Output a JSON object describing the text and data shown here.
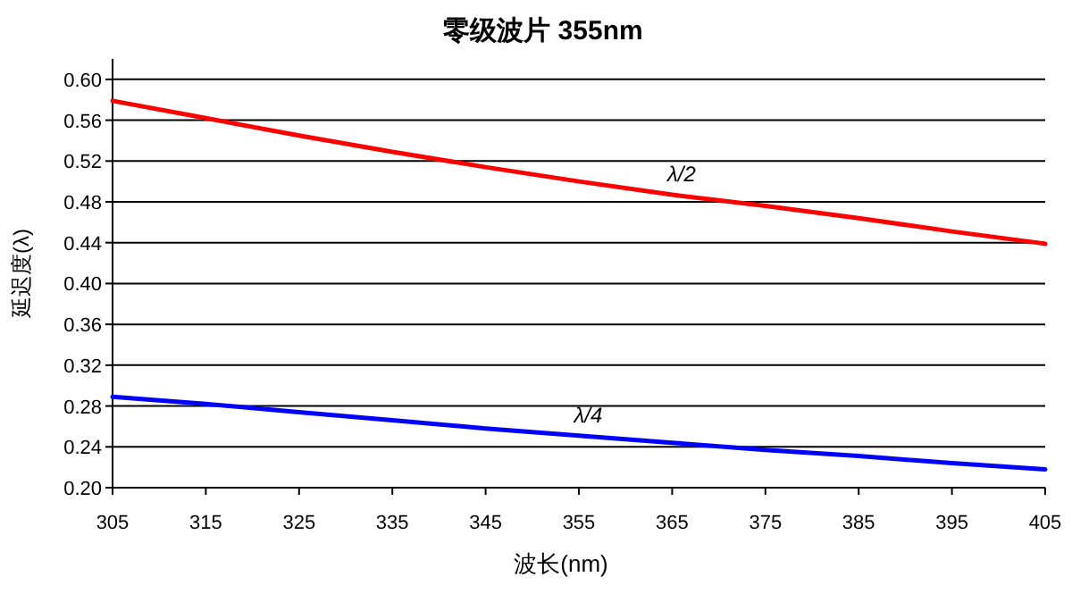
{
  "chart_data": {
    "type": "line",
    "title": "零级波片 355nm",
    "xlabel": "波长(nm)",
    "ylabel": "延迟度(λ)",
    "x": [
      305,
      315,
      325,
      335,
      345,
      355,
      365,
      375,
      385,
      395,
      405
    ],
    "series": [
      {
        "name": "λ/2",
        "color": "#ff0000",
        "values": [
          0.579,
          0.562,
          0.545,
          0.529,
          0.514,
          0.5,
          0.487,
          0.476,
          0.464,
          0.451,
          0.439
        ]
      },
      {
        "name": "λ/4",
        "color": "#0000ff",
        "values": [
          0.289,
          0.282,
          0.274,
          0.266,
          0.258,
          0.251,
          0.244,
          0.237,
          0.231,
          0.224,
          0.218
        ]
      }
    ],
    "xlim": [
      305,
      405
    ],
    "xticks": [
      305,
      315,
      325,
      335,
      345,
      355,
      365,
      375,
      385,
      395,
      405
    ],
    "ylim": [
      0.2,
      0.62
    ],
    "yticks": [
      {
        "value": 0.2,
        "label": "0.20"
      },
      {
        "value": 0.24,
        "label": "0.24"
      },
      {
        "value": 0.28,
        "label": "0.28"
      },
      {
        "value": 0.32,
        "label": "0.32"
      },
      {
        "value": 0.36,
        "label": "0.36"
      },
      {
        "value": 0.4,
        "label": "0.40"
      },
      {
        "value": 0.44,
        "label": "0.44"
      },
      {
        "value": 0.48,
        "label": "0.48"
      },
      {
        "value": 0.52,
        "label": "0.52"
      },
      {
        "value": 0.56,
        "label": "0.56"
      },
      {
        "value": 0.6,
        "label": "0.60"
      }
    ],
    "grid": "y",
    "marker": "none",
    "line_style": "solid"
  }
}
